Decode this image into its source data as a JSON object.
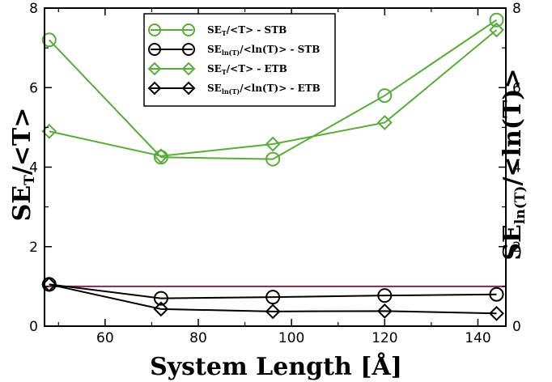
{
  "chart_data": {
    "type": "line",
    "xlabel": "System Length [Å]",
    "ylabel_left": "SE_T/<T>",
    "ylabel_right": "SE_ln(T)/<ln(T)>",
    "xlim": [
      47,
      146
    ],
    "ylim": [
      0,
      8
    ],
    "x_ticks": [
      60,
      80,
      100,
      120,
      140
    ],
    "y_ticks": [
      0,
      2,
      4,
      6,
      8
    ],
    "grid": false,
    "legend_position": "top-center",
    "reference_line": {
      "y": 1.0,
      "color": "#7b2a52"
    },
    "x": [
      48,
      72,
      96,
      120,
      144
    ],
    "series": [
      {
        "name": "SE_T/<T> - STB",
        "legend": {
          "base": "SE",
          "sub": "T",
          "rest": "/<T> - STB"
        },
        "color": "#5aac3a",
        "marker": "circle",
        "values": [
          7.2,
          4.25,
          4.2,
          5.8,
          7.7
        ]
      },
      {
        "name": "SE_ln(T)/<ln(T)> - STB",
        "legend": {
          "base": "SE",
          "sub": "ln(T)",
          "rest": "/<ln(T)> - STB"
        },
        "color": "#000000",
        "marker": "circle",
        "values": [
          1.05,
          0.7,
          0.73,
          0.77,
          0.8
        ]
      },
      {
        "name": "SE_T/<T> - ETB",
        "legend": {
          "base": "SE",
          "sub": "T",
          "rest": "/<T> - ETB"
        },
        "color": "#5aac3a",
        "marker": "diamond",
        "values": [
          4.9,
          4.28,
          4.58,
          5.12,
          7.45
        ]
      },
      {
        "name": "SE_ln(T)/<ln(T)> - ETB",
        "legend": {
          "base": "SE",
          "sub": "ln(T)",
          "rest": "/<ln(T)> - ETB"
        },
        "color": "#000000",
        "marker": "diamond",
        "values": [
          1.05,
          0.43,
          0.37,
          0.38,
          0.32
        ]
      }
    ]
  }
}
